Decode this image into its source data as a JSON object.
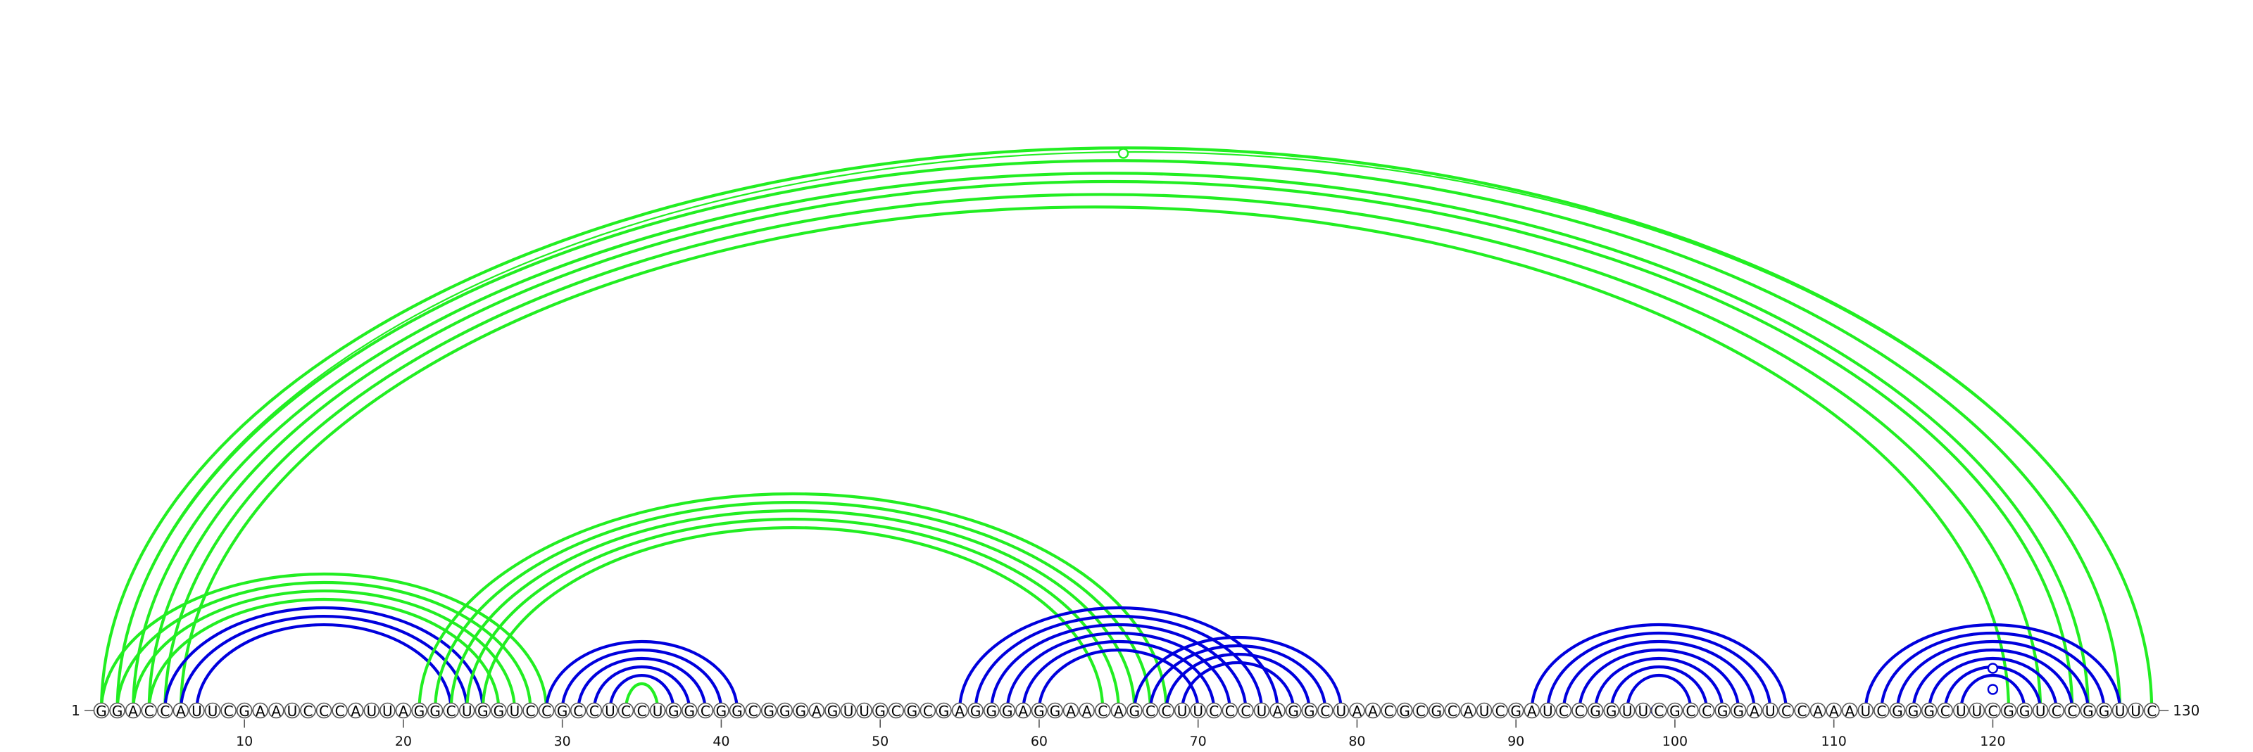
{
  "sequence": "GGACCAUUCGAAUCCCAUUAGGCUGGUCCGCCUCCUGGCGGCGGGAGUUGCGCGAGGGAGGAACAGCCUUCCCUAGGCUAACGCGCAUCGAUCCGGUUCGCCGGAUCCAAAUCGGGCUUCGGUCCGGUUC",
  "start_label": "1",
  "end_label": "130",
  "ticks": [
    {
      "pos": 10,
      "label": "10"
    },
    {
      "pos": 20,
      "label": "20"
    },
    {
      "pos": 30,
      "label": "30"
    },
    {
      "pos": 40,
      "label": "40"
    },
    {
      "pos": 50,
      "label": "50"
    },
    {
      "pos": 60,
      "label": "60"
    },
    {
      "pos": 70,
      "label": "70"
    },
    {
      "pos": 80,
      "label": "80"
    },
    {
      "pos": 90,
      "label": "90"
    },
    {
      "pos": 100,
      "label": "100"
    },
    {
      "pos": 110,
      "label": "110"
    },
    {
      "pos": 120,
      "label": "120"
    }
  ],
  "colors": {
    "top_arc": "#22ee22",
    "bottom_arc": "#0000dd",
    "circle_stroke": "#555555"
  },
  "arc_sets": [
    {
      "group": "green",
      "pairs": [
        [
          1,
          130
        ],
        [
          2,
          128
        ],
        [
          3,
          126
        ],
        [
          4,
          125
        ],
        [
          5,
          123
        ],
        [
          6,
          121
        ]
      ],
      "thin": [
        [
          2,
          130
        ]
      ]
    },
    {
      "group": "green",
      "pairs": [
        [
          1,
          29
        ],
        [
          2,
          28
        ],
        [
          3,
          27
        ],
        [
          4,
          26
        ]
      ],
      "thin": []
    },
    {
      "group": "blue",
      "pairs": [
        [
          5,
          25
        ],
        [
          6,
          24
        ],
        [
          7,
          23
        ]
      ],
      "thin": []
    },
    {
      "group": "green",
      "pairs": [
        [
          21,
          68
        ],
        [
          22,
          67
        ],
        [
          23,
          66
        ],
        [
          24,
          65
        ],
        [
          25,
          64
        ]
      ],
      "thin": []
    },
    {
      "group": "blue",
      "pairs": [
        [
          29,
          41
        ],
        [
          30,
          40
        ],
        [
          31,
          39
        ],
        [
          32,
          38
        ],
        [
          33,
          37
        ]
      ],
      "thin": []
    },
    {
      "group": "green",
      "pairs": [
        [
          34,
          36
        ]
      ],
      "thin": []
    },
    {
      "group": "blue",
      "pairs": [
        [
          55,
          75
        ],
        [
          56,
          74
        ],
        [
          57,
          73
        ],
        [
          58,
          72
        ],
        [
          59,
          71
        ],
        [
          60,
          70
        ]
      ],
      "thin": []
    },
    {
      "group": "blue",
      "pairs": [
        [
          66,
          79
        ],
        [
          67,
          78
        ],
        [
          68,
          77
        ],
        [
          69,
          76
        ]
      ],
      "thin": []
    },
    {
      "group": "blue",
      "pairs": [
        [
          91,
          107
        ],
        [
          92,
          106
        ],
        [
          93,
          105
        ],
        [
          94,
          104
        ],
        [
          95,
          103
        ],
        [
          96,
          102
        ],
        [
          97,
          101
        ]
      ],
      "thin": []
    },
    {
      "group": "blue",
      "pairs": [
        [
          112,
          128
        ],
        [
          113,
          127
        ],
        [
          114,
          126
        ],
        [
          115,
          125
        ],
        [
          116,
          124
        ],
        [
          117,
          123
        ],
        [
          118,
          122
        ]
      ],
      "thin": []
    }
  ],
  "markers": [
    {
      "i": 65.3,
      "j": 65.3,
      "group": "green",
      "filled": false,
      "height": 1
    },
    {
      "i": 35,
      "j": 35,
      "group": "green",
      "filled": true,
      "height": 0
    },
    {
      "i": 98.8,
      "j": 98.8,
      "group": "blue",
      "filled": false,
      "height": 0
    },
    {
      "i": 120,
      "j": 120,
      "group": "blue",
      "filled": false,
      "height": 0
    },
    {
      "i": 120,
      "j": 120,
      "group": "blue",
      "filled": false,
      "height": 1
    },
    {
      "i": 120,
      "j": 120,
      "group": "blue",
      "filled": false,
      "height": 2
    }
  ]
}
